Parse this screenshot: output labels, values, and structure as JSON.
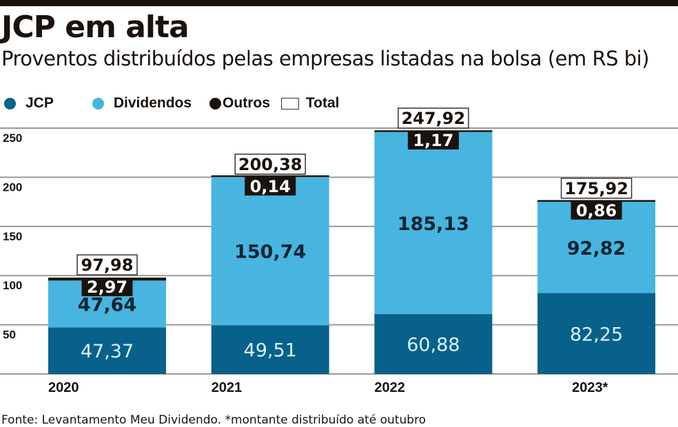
{
  "title": "JCP em alta",
  "subtitle": "Proventos distribuídos pelas empresas listadas na bolsa (em RS bi)",
  "footer": "Fonte: Levantamento Meu Dividendo. *montante distribuído até outubro",
  "colors": {
    "JCP": "#07618a",
    "Dividendos": "#47b5e0",
    "Outros": "#1a120c"
  },
  "chart_data": {
    "type": "bar",
    "stacked": true,
    "categories": [
      "2020",
      "2021",
      "2022",
      "2023*"
    ],
    "series": [
      {
        "name": "JCP",
        "values": [
          47.37,
          49.51,
          60.88,
          82.25
        ],
        "labels": [
          "47,37",
          "49,51",
          "60,88",
          "82,25"
        ]
      },
      {
        "name": "Dividendos",
        "values": [
          47.64,
          150.74,
          185.13,
          92.82
        ],
        "labels": [
          "47,64",
          "150,74",
          "185,13",
          "92,82"
        ]
      },
      {
        "name": "Outros",
        "values": [
          2.97,
          0.14,
          1.17,
          0.86
        ],
        "labels": [
          "2,97",
          "0,14",
          "1,17",
          "0,86"
        ]
      }
    ],
    "totals": {
      "name": "Total",
      "values": [
        97.98,
        200.38,
        247.92,
        175.92
      ],
      "labels": [
        "97,98",
        "200,38",
        "247,92",
        "175,92"
      ]
    },
    "yticks": [
      50,
      100,
      150,
      200,
      250
    ],
    "ylim": [
      0,
      250
    ],
    "grid": true,
    "legend": "top-left"
  }
}
